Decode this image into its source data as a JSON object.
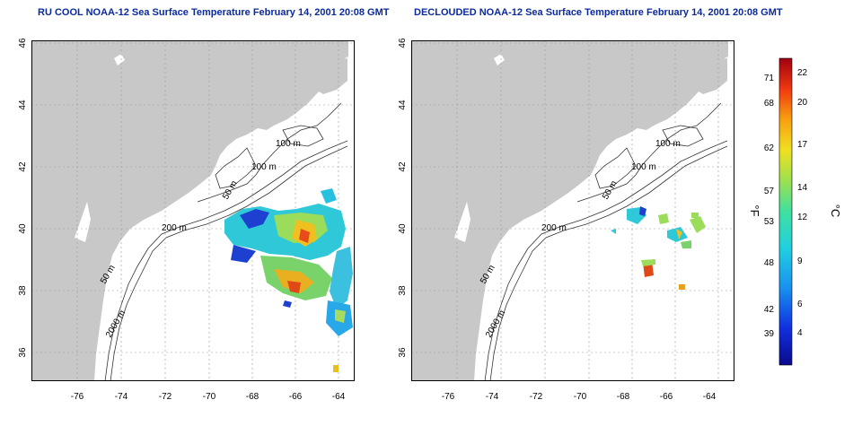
{
  "panels": {
    "left": {
      "title": "RU COOL NOAA-12 Sea Surface Temperature February 14, 2001 20:08 GMT"
    },
    "right": {
      "title": "DECLOUDED NOAA-12 Sea Surface Temperature February 14, 2001 20:08 GMT"
    }
  },
  "axes": {
    "lon_ticks": [
      "-76",
      "-74",
      "-72",
      "-70",
      "-68",
      "-66",
      "-64"
    ],
    "lat_ticks": [
      "46",
      "44",
      "42",
      "40",
      "38",
      "36"
    ]
  },
  "contour_labels": [
    "100 m",
    "100 m",
    "50 m",
    "200 m",
    "50 m",
    "2000 m"
  ],
  "colorbar": {
    "f_unit": "°F",
    "c_unit": "°C",
    "f_ticks": [
      "71",
      "68",
      "62",
      "57",
      "53",
      "48",
      "42",
      "39"
    ],
    "c_ticks": [
      "22",
      "20",
      "17",
      "14",
      "12",
      "9",
      "6",
      "4"
    ]
  },
  "colors": {
    "land": "#c8c8c8",
    "title": "#0b2a9c",
    "grid": "#9a9a9a"
  }
}
